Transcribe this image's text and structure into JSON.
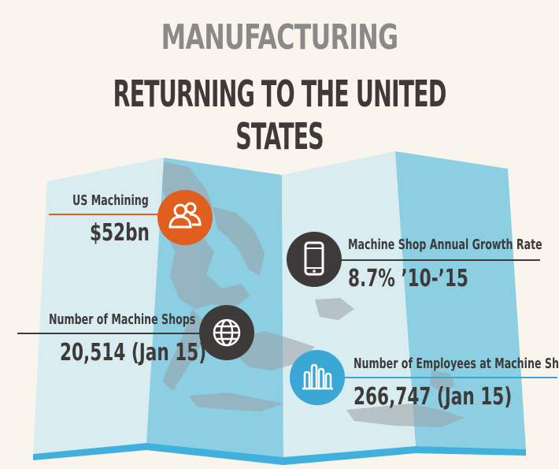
{
  "header": {
    "title": "MANUFACTURING",
    "subtitle": "RETURNING TO THE UNITED STATES"
  },
  "stats": [
    {
      "label": "US Machining",
      "value": "$52bn",
      "icon": "people-icon",
      "color": "#e05f1f"
    },
    {
      "label": "Machine Shop Annual Growth Rate",
      "value": "8.7% ’10-’15",
      "icon": "smartphone-icon",
      "color": "#3d3a39"
    },
    {
      "label": "Number of Machine Shops",
      "value": "20,514 (Jan 15)",
      "icon": "globe-icon",
      "color": "#3d3a39"
    },
    {
      "label": "Number of Employees at Machine Shops",
      "value": "266,747 (Jan 15)",
      "icon": "bar-chart-icon",
      "color": "#3aa7d4"
    }
  ],
  "colors": {
    "background": "#f9f5ec",
    "map_light": "#d9ecf0",
    "map_blue": "#8ccfe3",
    "map_bottom": "#40b0dd",
    "land": "#9aa1a6",
    "accent_orange": "#e05f1f",
    "dark": "#3d3a39"
  }
}
